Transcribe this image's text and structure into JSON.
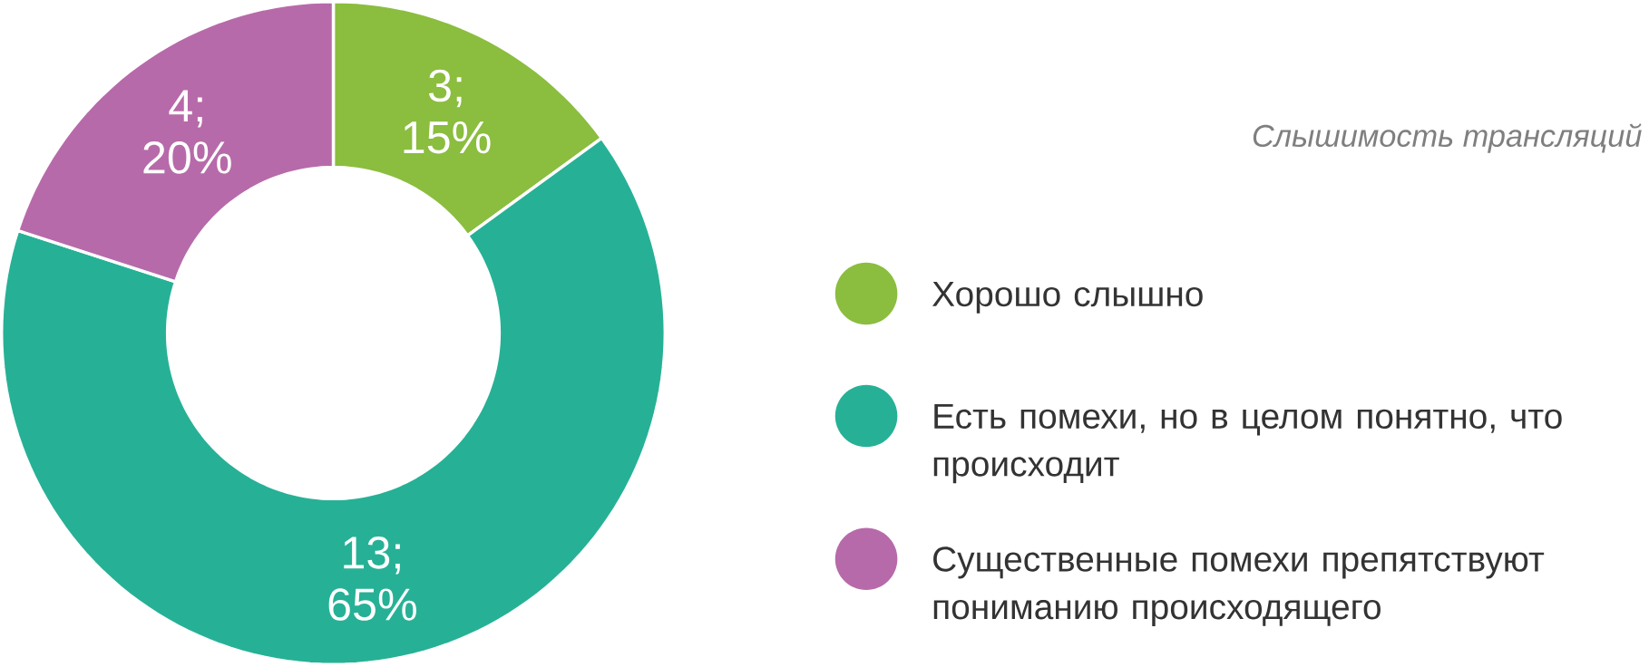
{
  "chart_data": {
    "type": "donut",
    "title": "Слышимость трансляций",
    "categories": [
      "Хорошо слышно",
      "Есть помехи, но в целом понятно, что происходит",
      "Существенные помехи препятствуют пониманию происходящего"
    ],
    "values": [
      3,
      13,
      4
    ],
    "colors": [
      "#8bbd3f",
      "#26b196",
      "#b76aa9"
    ],
    "value_labels": [
      "3; 15%",
      "13; 65%",
      "4; 20%"
    ],
    "legend": "right"
  }
}
